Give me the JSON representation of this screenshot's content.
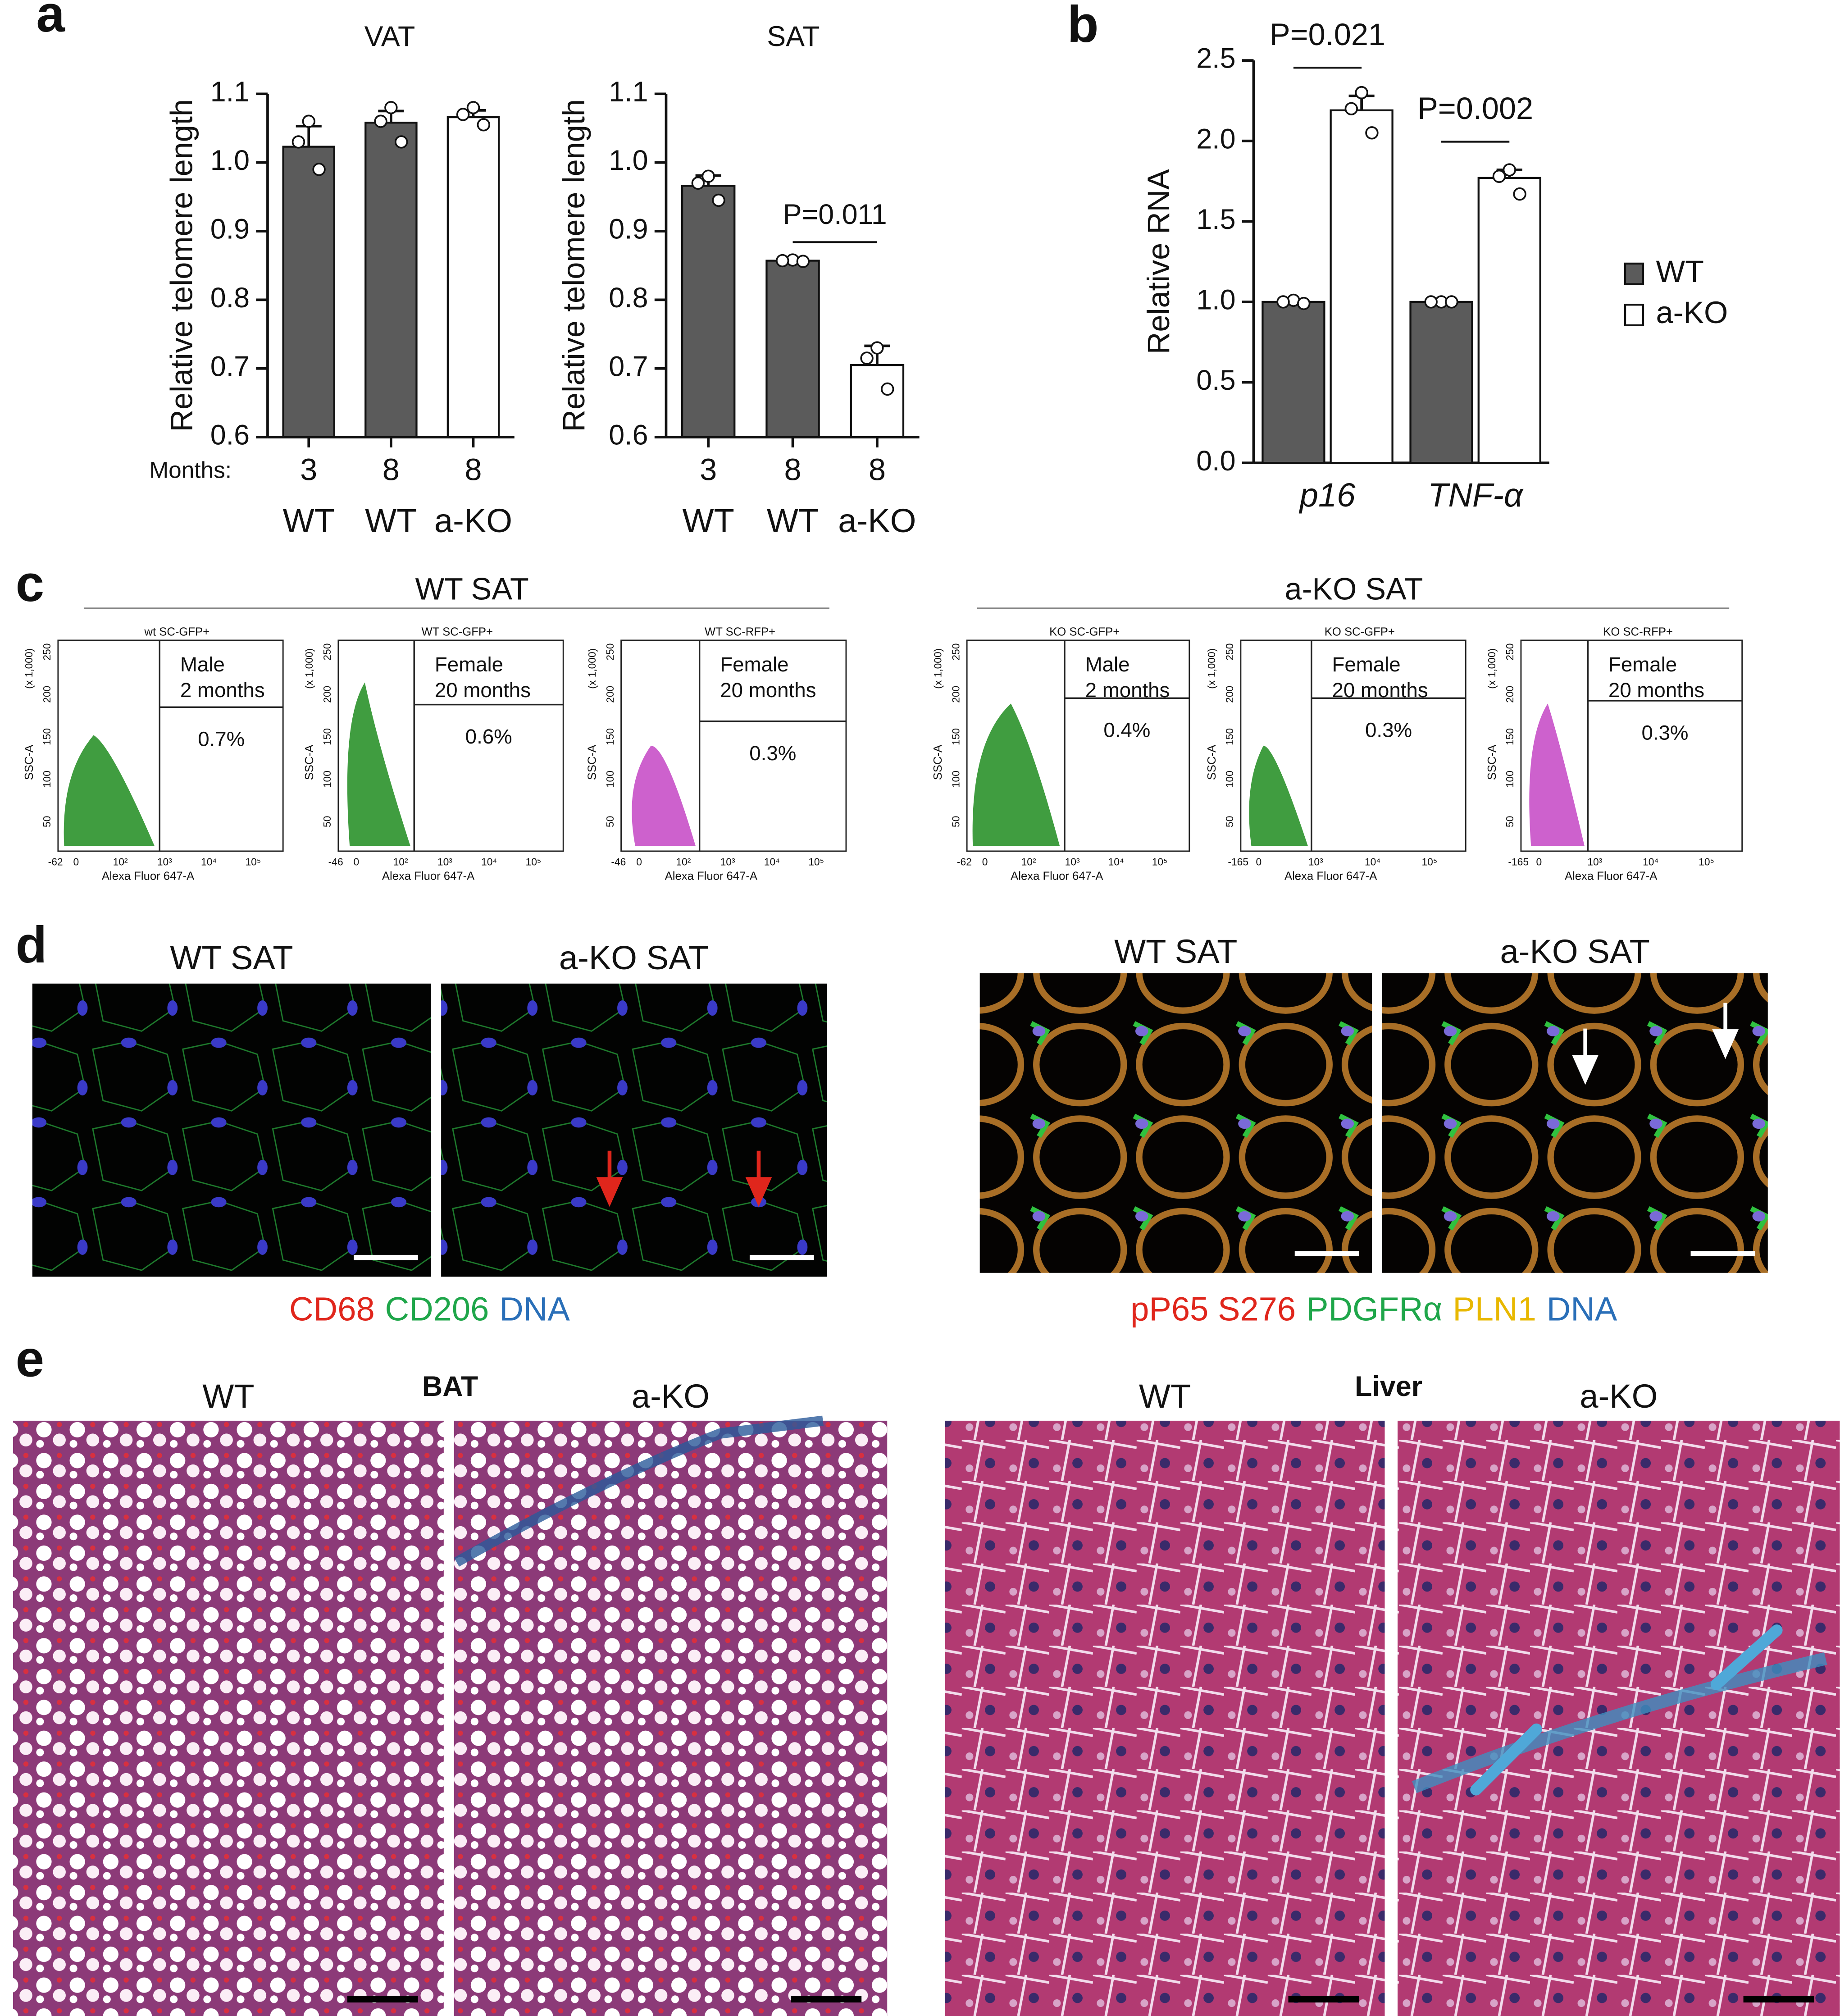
{
  "panel_labels": [
    "a",
    "b",
    "c",
    "d",
    "e"
  ],
  "chart_data": [
    {
      "type": "bar",
      "title": "VAT",
      "y_label": "Relative telomere length",
      "category_prefix": "Months:",
      "categories": [
        "3",
        "8",
        "8"
      ],
      "groups": [
        "WT",
        "WT",
        "a-KO"
      ],
      "values": [
        1.023,
        1.058,
        1.066
      ],
      "errors": [
        0.03,
        0.017,
        0.01
      ],
      "points": [
        [
          1.06,
          1.03,
          0.99
        ],
        [
          1.08,
          1.06,
          1.03
        ],
        [
          1.08,
          1.07,
          1.055
        ]
      ],
      "colors": [
        "#5b5b5b",
        "#5b5b5b",
        "#ffffff"
      ],
      "ylim": [
        0.6,
        1.1
      ],
      "yticks": [
        0.6,
        0.7,
        0.8,
        0.9,
        {
          "value": 1,
          "label": "1.0"
        },
        1.1
      ]
    },
    {
      "type": "bar",
      "title": "SAT",
      "y_label": "Relative telomere length",
      "categories": [
        "3",
        "8",
        "8"
      ],
      "groups": [
        "WT",
        "WT",
        "a-KO"
      ],
      "values": [
        0.966,
        0.857,
        0.705
      ],
      "errors": [
        0.015,
        0.002,
        0.028
      ],
      "points": [
        [
          0.98,
          0.97,
          0.945
        ],
        [
          0.858,
          0.857,
          0.856
        ],
        [
          0.73,
          0.715,
          0.67
        ]
      ],
      "colors": [
        "#5b5b5b",
        "#5b5b5b",
        "#ffffff"
      ],
      "annotations": [
        {
          "text": "P=0.011",
          "between": [
            1,
            2
          ]
        }
      ],
      "ylim": [
        0.6,
        1.1
      ],
      "yticks": [
        0.6,
        0.7,
        0.8,
        0.9,
        {
          "value": 1,
          "label": "1.0"
        },
        1.1
      ]
    },
    {
      "type": "grouped-bar",
      "y_label": "Relative RNA",
      "categories": [
        "p16",
        "TNF-α"
      ],
      "series": [
        {
          "name": "WT",
          "color": "#5b5b5b",
          "values": [
            1.0,
            1.0
          ],
          "errors": [
            0.01,
            0.005
          ],
          "points": [
            [
              1.01,
              1.0,
              0.99
            ],
            [
              1.0,
              1.0,
              1.0
            ]
          ]
        },
        {
          "name": "a-KO",
          "color": "#ffffff",
          "values": [
            2.19,
            1.77
          ],
          "errors": [
            0.09,
            0.05
          ],
          "points": [
            [
              2.3,
              2.2,
              2.05
            ],
            [
              1.82,
              1.78,
              1.67
            ]
          ]
        }
      ],
      "annotations": [
        {
          "text": "P=0.021",
          "category": 0
        },
        {
          "text": "P=0.002",
          "category": 1
        }
      ],
      "legend": "right",
      "ylim": [
        0,
        2.5
      ],
      "yticks": [
        {
          "value": 0,
          "label": "0.0"
        },
        0.5,
        {
          "value": 1,
          "label": "1.0"
        },
        1.5,
        {
          "value": 2,
          "label": "2.0"
        },
        2.5
      ]
    }
  ],
  "flow": [
    {
      "title": "WT SAT",
      "plots": [
        {
          "title": "wt SC-GFP+",
          "gate": [
            "Male",
            "2 months"
          ],
          "percent": "0.7%",
          "color": "#1f8c1f",
          "y_label": "SSC-A",
          "y_unit": "(x 1,000)",
          "x_label": "Alexa Fluor 647-A",
          "y_ticks": [
            "50",
            "100",
            "150",
            "200",
            "250"
          ],
          "x_ticks": [
            "-62",
            "0",
            "10²",
            "10³",
            "10⁴",
            "10⁵"
          ]
        },
        {
          "title": "WT SC-GFP+",
          "gate": [
            "Female",
            "20 months"
          ],
          "percent": "0.6%",
          "color": "#1f8c1f",
          "y_label": "SSC-A",
          "y_unit": "(x 1,000)",
          "x_label": "Alexa Fluor 647-A",
          "y_ticks": [
            "50",
            "100",
            "150",
            "200",
            "250"
          ],
          "x_ticks": [
            "-46",
            "0",
            "10²",
            "10³",
            "10⁴",
            "10⁵"
          ]
        },
        {
          "title": "WT SC-RFP+",
          "gate": [
            "Female",
            "20 months"
          ],
          "percent": "0.3%",
          "color": "#c445c4",
          "y_label": "SSC-A",
          "y_unit": "(x 1,000)",
          "x_label": "Alexa Fluor 647-A",
          "y_ticks": [
            "50",
            "100",
            "150",
            "200",
            "250"
          ],
          "x_ticks": [
            "-46",
            "0",
            "10²",
            "10³",
            "10⁴",
            "10⁵"
          ]
        }
      ]
    },
    {
      "title": "a-KO SAT",
      "plots": [
        {
          "title": "KO SC-GFP+",
          "gate": [
            "Male",
            "2 months"
          ],
          "percent": "0.4%",
          "color": "#1f8c1f",
          "y_label": "SSC-A",
          "y_unit": "(x 1,000)",
          "x_label": "Alexa Fluor 647-A",
          "y_ticks": [
            "50",
            "100",
            "150",
            "200",
            "250"
          ],
          "x_ticks": [
            "-62",
            "0",
            "10²",
            "10³",
            "10⁴",
            "10⁵"
          ]
        },
        {
          "title": "KO SC-GFP+",
          "gate": [
            "Female",
            "20 months"
          ],
          "percent": "0.3%",
          "color": "#1f8c1f",
          "y_label": "SSC-A",
          "y_unit": "(x 1,000)",
          "x_label": "Alexa Fluor 647-A",
          "y_ticks": [
            "50",
            "100",
            "150",
            "200",
            "250"
          ],
          "x_ticks": [
            "-165",
            "0",
            "10³",
            "10⁴",
            "10⁵"
          ]
        },
        {
          "title": "KO SC-RFP+",
          "gate": [
            "Female",
            "20 months"
          ],
          "percent": "0.3%",
          "color": "#c445c4",
          "y_label": "SSC-A",
          "y_unit": "(x 1,000)",
          "x_label": "Alexa Fluor 647-A",
          "y_ticks": [
            "50",
            "100",
            "150",
            "200",
            "250"
          ],
          "x_ticks": [
            "-165",
            "0",
            "10³",
            "10⁴",
            "10⁵"
          ]
        }
      ]
    }
  ],
  "immunofluorescence": [
    {
      "titles": [
        "WT SAT",
        "a-KO SAT"
      ],
      "stains": [
        {
          "text": "CD68",
          "color": "#e0261c"
        },
        {
          "text": "CD206",
          "color": "#1fa64a"
        },
        {
          "text": "DNA",
          "color": "#2a6fb8"
        }
      ]
    },
    {
      "titles": [
        "WT SAT",
        "a-KO SAT"
      ],
      "stains": [
        {
          "text": "pP65 S276",
          "color": "#e0261c"
        },
        {
          "text": "PDGFRα",
          "color": "#1fa64a"
        },
        {
          "text": "PLN1",
          "color": "#e8b800"
        },
        {
          "text": "DNA",
          "color": "#2a6fb8"
        }
      ]
    }
  ],
  "histology": {
    "tissues": [
      "BAT",
      "Liver"
    ],
    "labels": [
      "WT",
      "a-KO",
      "WT",
      "a-KO"
    ]
  }
}
